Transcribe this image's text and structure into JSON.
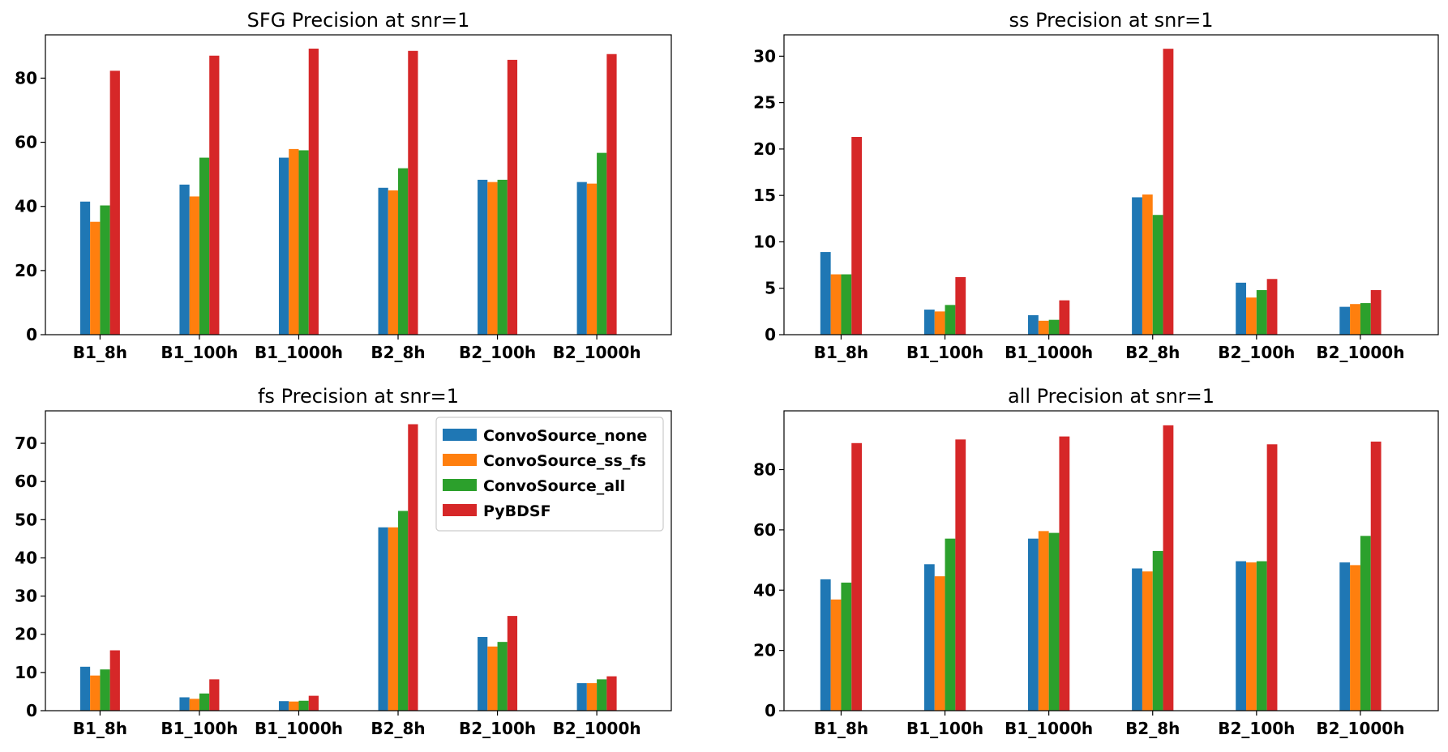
{
  "chart_data": [
    {
      "type": "bar",
      "title": "SFG Precision at snr=1",
      "categories": [
        "B1_8h",
        "B1_100h",
        "B1_1000h",
        "B2_8h",
        "B2_100h",
        "B2_1000h"
      ],
      "series": [
        {
          "name": "ConvoSource_none",
          "values": [
            41.5,
            46.8,
            55.2,
            45.8,
            48.3,
            47.6
          ]
        },
        {
          "name": "ConvoSource_ss_fs",
          "values": [
            35.2,
            43.1,
            57.9,
            45.0,
            47.6,
            47.1
          ]
        },
        {
          "name": "ConvoSource_all",
          "values": [
            40.3,
            55.2,
            57.5,
            51.9,
            48.3,
            56.7
          ]
        },
        {
          "name": "PyBDSF",
          "values": [
            82.3,
            87.0,
            89.2,
            88.5,
            85.7,
            87.5
          ]
        }
      ],
      "yticks": [
        0,
        20,
        40,
        60,
        80
      ],
      "ylim": [
        0,
        93.5
      ],
      "xlabel": "",
      "ylabel": ""
    },
    {
      "type": "bar",
      "title": "ss Precision at snr=1",
      "categories": [
        "B1_8h",
        "B1_100h",
        "B1_1000h",
        "B2_8h",
        "B2_100h",
        "B2_1000h"
      ],
      "series": [
        {
          "name": "ConvoSource_none",
          "values": [
            8.9,
            2.7,
            2.1,
            14.8,
            5.6,
            3.0
          ]
        },
        {
          "name": "ConvoSource_ss_fs",
          "values": [
            6.5,
            2.5,
            1.5,
            15.1,
            4.0,
            3.3
          ]
        },
        {
          "name": "ConvoSource_all",
          "values": [
            6.5,
            3.2,
            1.6,
            12.9,
            4.8,
            3.4
          ]
        },
        {
          "name": "PyBDSF",
          "values": [
            21.3,
            6.2,
            3.7,
            30.8,
            6.0,
            4.8
          ]
        }
      ],
      "yticks": [
        0,
        5,
        10,
        15,
        20,
        25,
        30
      ],
      "ylim": [
        0,
        32.3
      ],
      "xlabel": "",
      "ylabel": ""
    },
    {
      "type": "bar",
      "title": "fs Precision at snr=1",
      "categories": [
        "B1_8h",
        "B1_100h",
        "B1_1000h",
        "B2_8h",
        "B2_100h",
        "B2_1000h"
      ],
      "series": [
        {
          "name": "ConvoSource_none",
          "values": [
            11.5,
            3.5,
            2.5,
            48.0,
            19.3,
            7.2
          ]
        },
        {
          "name": "ConvoSource_ss_fs",
          "values": [
            9.2,
            3.1,
            2.4,
            48.0,
            16.8,
            7.2
          ]
        },
        {
          "name": "ConvoSource_all",
          "values": [
            10.8,
            4.5,
            2.6,
            52.3,
            18.0,
            8.2
          ]
        },
        {
          "name": "PyBDSF",
          "values": [
            15.8,
            8.2,
            3.9,
            75.0,
            24.8,
            9.0
          ]
        }
      ],
      "yticks": [
        0,
        10,
        20,
        30,
        40,
        50,
        60,
        70
      ],
      "ylim": [
        0,
        78.5
      ],
      "xlabel": "",
      "ylabel": "",
      "legend": "top-right"
    },
    {
      "type": "bar",
      "title": "all Precision at snr=1",
      "categories": [
        "B1_8h",
        "B1_100h",
        "B1_1000h",
        "B2_8h",
        "B2_100h",
        "B2_1000h"
      ],
      "series": [
        {
          "name": "ConvoSource_none",
          "values": [
            43.6,
            48.6,
            57.1,
            47.2,
            49.6,
            49.2
          ]
        },
        {
          "name": "ConvoSource_ss_fs",
          "values": [
            36.9,
            44.6,
            59.6,
            46.2,
            49.2,
            48.3
          ]
        },
        {
          "name": "ConvoSource_all",
          "values": [
            42.5,
            57.1,
            59.0,
            53.0,
            49.6,
            58.0
          ]
        },
        {
          "name": "PyBDSF",
          "values": [
            88.8,
            90.0,
            91.0,
            94.7,
            88.4,
            89.3
          ]
        }
      ],
      "yticks": [
        0,
        20,
        40,
        60,
        80
      ],
      "ylim": [
        0,
        99.5
      ],
      "xlabel": "",
      "ylabel": ""
    }
  ],
  "colors": [
    "#1f77b4",
    "#ff7f0e",
    "#2ca02c",
    "#d62728"
  ]
}
